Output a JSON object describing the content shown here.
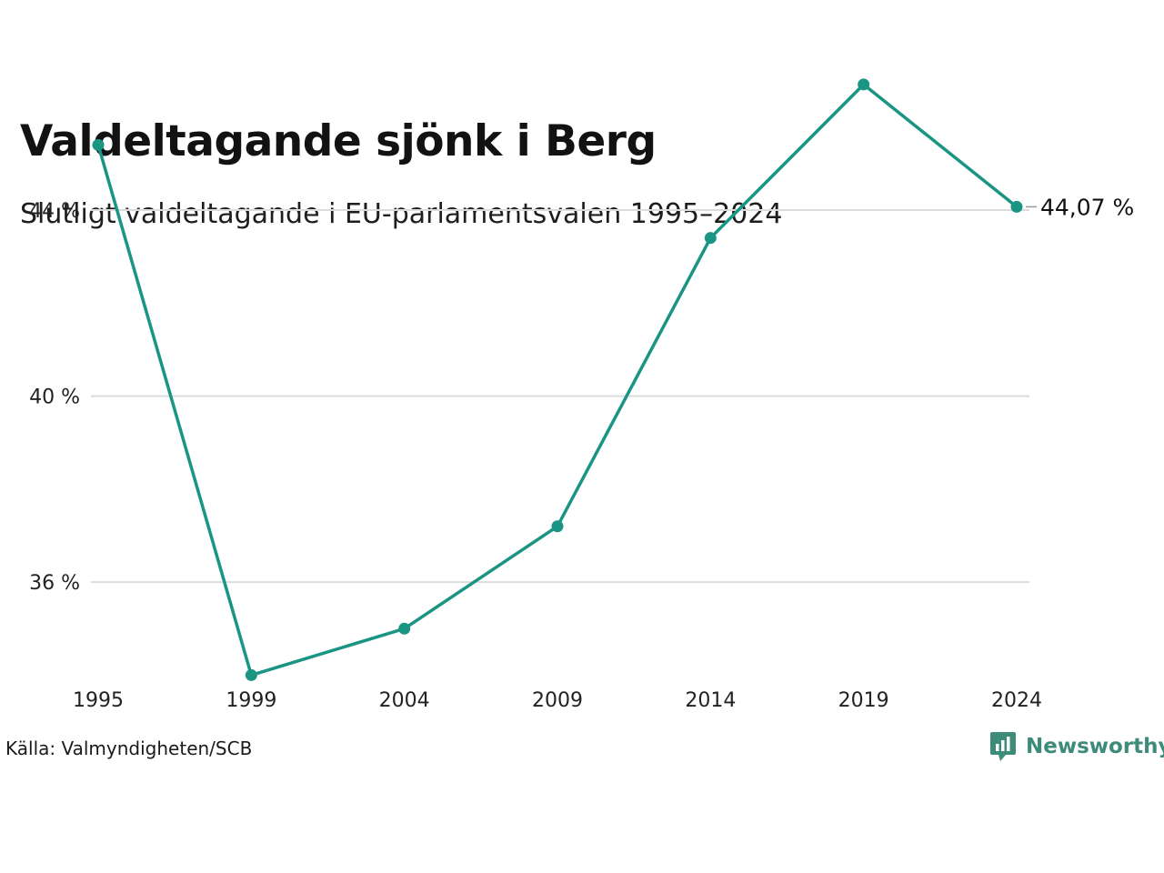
{
  "header": {
    "title": "Valdeltagande sjönk i Berg",
    "subtitle": "Slutligt valdeltagande i EU-parlamentsvalen 1995–2024"
  },
  "footer": {
    "source": "Källa: Valmyndigheten/SCB",
    "brand": "Newsworthy",
    "brand_icon": "newsworthy-logo-icon"
  },
  "colors": {
    "line": "#1a9584",
    "grid": "#dcdcdc",
    "brand": "#3d8c7a"
  },
  "chart_data": {
    "type": "line",
    "title": "Valdeltagande sjönk i Berg",
    "subtitle": "Slutligt valdeltagande i EU-parlamentsvalen 1995–2024",
    "categories": [
      "1995",
      "1999",
      "2004",
      "2009",
      "2014",
      "2019",
      "2024"
    ],
    "series": [
      {
        "values": [
          45.4,
          34.0,
          35.0,
          37.2,
          43.4,
          46.7,
          44.07
        ]
      }
    ],
    "yticks": [
      36,
      40,
      44
    ],
    "ytick_labels": [
      "36 %",
      "40 %",
      "44 %"
    ],
    "ylim": [
      33.5,
      47.5
    ],
    "grid": true,
    "end_label": "44,07 %"
  }
}
